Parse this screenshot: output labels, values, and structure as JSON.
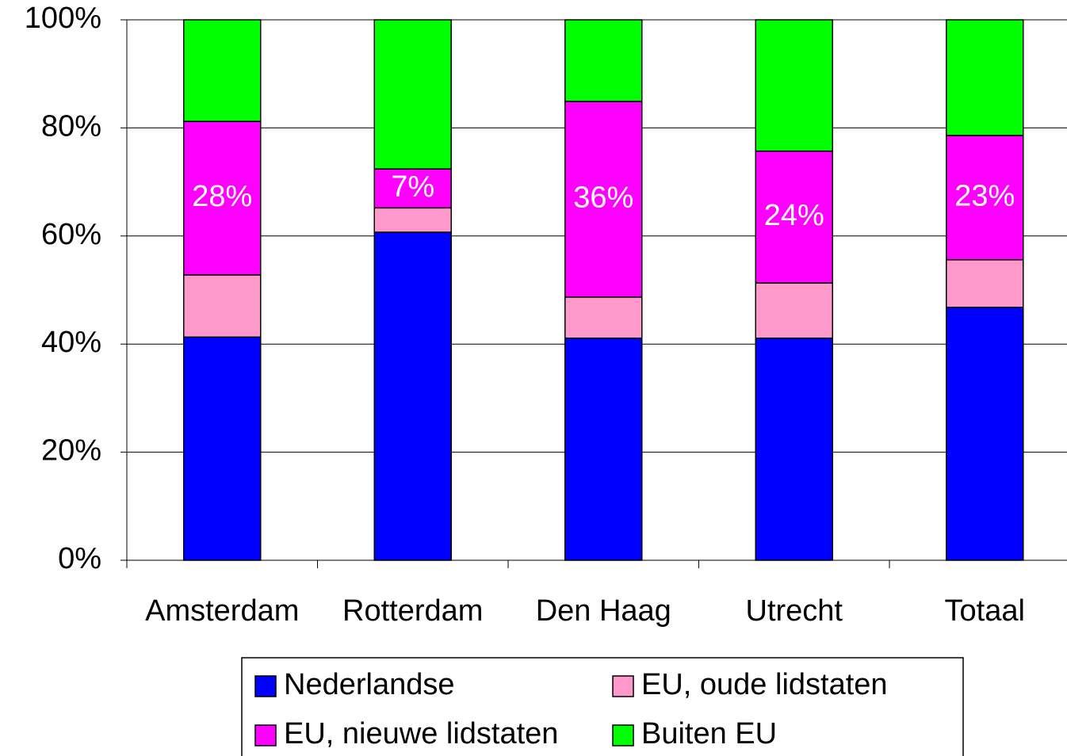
{
  "chart_data": {
    "type": "stacked_bar",
    "categories": [
      "Amsterdam",
      "Rotterdam",
      "Den Haag",
      "Utrecht",
      "Totaal"
    ],
    "series": [
      {
        "name": "Nederlandse",
        "color": "#0000ff",
        "values": [
          41.3,
          60.7,
          41.1,
          41.1,
          46.8
        ]
      },
      {
        "name": "EU, oude lidstaten",
        "color": "#ff99cc",
        "values": [
          11.5,
          4.5,
          7.6,
          10.2,
          8.8
        ]
      },
      {
        "name": "EU, nieuwe lidstaten",
        "color": "#ff00ff",
        "values": [
          28.4,
          7.2,
          36.2,
          24.4,
          23.0
        ],
        "value_labels": [
          "28%",
          "7%",
          "36%",
          "24%",
          "23%"
        ]
      },
      {
        "name": "Buiten EU",
        "color": "#00ff00",
        "values": [
          18.8,
          27.6,
          15.1,
          24.3,
          21.4
        ]
      }
    ],
    "ylim": [
      0,
      100
    ],
    "yticks": [
      {
        "value": 0,
        "label": "0%"
      },
      {
        "value": 20,
        "label": "20%"
      },
      {
        "value": 40,
        "label": "40%"
      },
      {
        "value": 60,
        "label": "60%"
      },
      {
        "value": 80,
        "label": "80%"
      },
      {
        "value": 100,
        "label": "100%"
      }
    ],
    "grid": true,
    "legend": "bottom"
  }
}
